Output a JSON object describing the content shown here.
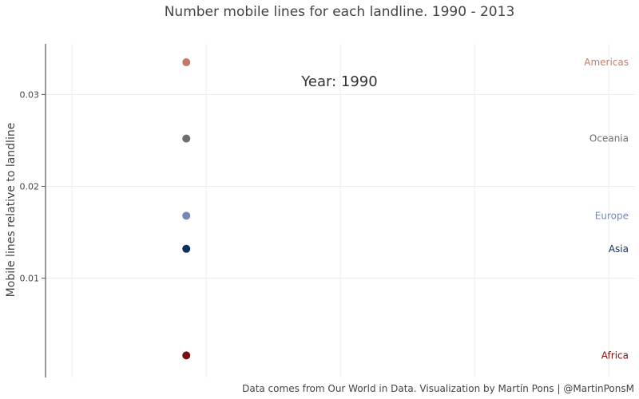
{
  "chart_data": {
    "type": "scatter",
    "title": "Number mobile lines for each landline. 1990 - 2013",
    "xlabel": "",
    "ylabel": "Mobile lines relative to landline",
    "year_label": "Year: 1990",
    "caption": "Data comes from Our World in Data. Visualization by Martín Pons | @MartinPonsM",
    "xlim": [
      1989.5,
      1991.5
    ],
    "ylim": [
      -0.0008,
      0.0355
    ],
    "yticks": [
      {
        "value": 0.01,
        "label": "0.01"
      },
      {
        "value": 0.02,
        "label": "0.02"
      },
      {
        "value": 0.03,
        "label": "0.03"
      }
    ],
    "grid": true,
    "legend": "direct labels at right",
    "series": [
      {
        "name": "Americas",
        "color": "#c47a66",
        "points": [
          {
            "x": 1990,
            "y": 0.0335
          }
        ]
      },
      {
        "name": "Oceania",
        "color": "#6e6e6e",
        "points": [
          {
            "x": 1990,
            "y": 0.0252
          }
        ]
      },
      {
        "name": "Europe",
        "color": "#7488b8",
        "points": [
          {
            "x": 1990,
            "y": 0.0168
          }
        ]
      },
      {
        "name": "Asia",
        "color": "#0e2f5f",
        "points": [
          {
            "x": 1990,
            "y": 0.0132
          }
        ]
      },
      {
        "name": "Africa",
        "color": "#7a0e0e",
        "points": [
          {
            "x": 1990,
            "y": 0.0016
          }
        ]
      }
    ]
  }
}
